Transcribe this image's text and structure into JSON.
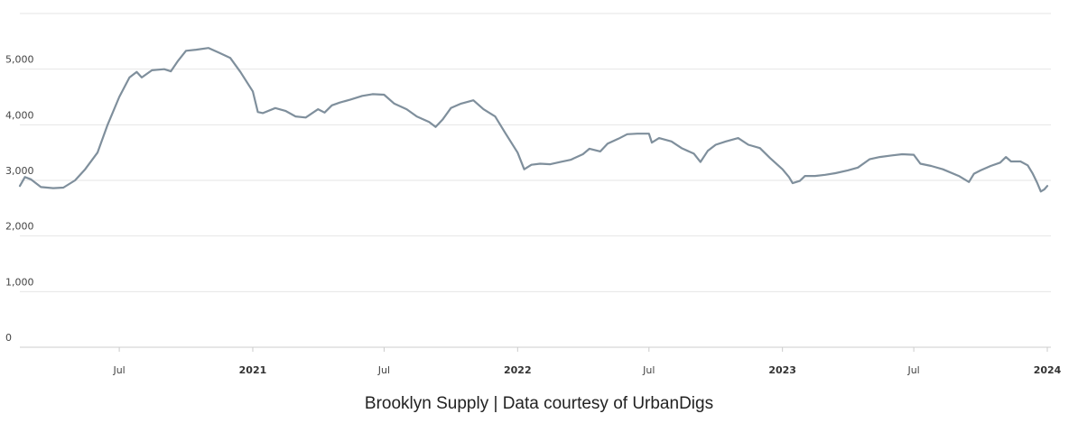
{
  "caption": "Brooklyn Supply | Data courtesy of UrbanDigs",
  "colors": {
    "line": "#7f8f9c",
    "grid": "#e6e6e6",
    "axis": "#cccccc"
  },
  "chart_data": {
    "type": "line",
    "title": "",
    "xlabel": "",
    "ylabel": "",
    "xlim": [
      "2020-02-15",
      "2024-01-01"
    ],
    "ylim": [
      0,
      6000
    ],
    "grid": true,
    "y_ticks": [
      {
        "value": 0,
        "label": "0"
      },
      {
        "value": 1000,
        "label": "1,000"
      },
      {
        "value": 2000,
        "label": "2,000"
      },
      {
        "value": 3000,
        "label": "3,000"
      },
      {
        "value": 4000,
        "label": "4,000"
      },
      {
        "value": 5000,
        "label": "5,000"
      }
    ],
    "x_ticks": [
      {
        "date": "2020-07-01",
        "label": "Jul",
        "major": false
      },
      {
        "date": "2021-01-01",
        "label": "2021",
        "major": true
      },
      {
        "date": "2021-07-01",
        "label": "Jul",
        "major": false
      },
      {
        "date": "2022-01-01",
        "label": "2022",
        "major": true
      },
      {
        "date": "2022-07-01",
        "label": "Jul",
        "major": false
      },
      {
        "date": "2023-01-01",
        "label": "2023",
        "major": true
      },
      {
        "date": "2023-07-01",
        "label": "Jul",
        "major": false
      },
      {
        "date": "2024-01-01",
        "label": "2024",
        "major": true
      }
    ],
    "series": [
      {
        "color": "#7f8f9c",
        "points": [
          [
            "2020-02-15",
            2900
          ],
          [
            "2020-02-22",
            3060
          ],
          [
            "2020-03-01",
            3020
          ],
          [
            "2020-03-15",
            2880
          ],
          [
            "2020-04-01",
            2860
          ],
          [
            "2020-04-15",
            2870
          ],
          [
            "2020-05-01",
            3000
          ],
          [
            "2020-05-15",
            3200
          ],
          [
            "2020-06-01",
            3500
          ],
          [
            "2020-06-15",
            4000
          ],
          [
            "2020-07-01",
            4500
          ],
          [
            "2020-07-15",
            4850
          ],
          [
            "2020-07-25",
            4950
          ],
          [
            "2020-08-01",
            4850
          ],
          [
            "2020-08-15",
            4980
          ],
          [
            "2020-09-01",
            5000
          ],
          [
            "2020-09-10",
            4960
          ],
          [
            "2020-09-20",
            5150
          ],
          [
            "2020-10-01",
            5330
          ],
          [
            "2020-10-15",
            5350
          ],
          [
            "2020-11-01",
            5380
          ],
          [
            "2020-11-15",
            5300
          ],
          [
            "2020-12-01",
            5200
          ],
          [
            "2020-12-15",
            4950
          ],
          [
            "2021-01-01",
            4600
          ],
          [
            "2021-01-08",
            4230
          ],
          [
            "2021-01-15",
            4210
          ],
          [
            "2021-02-01",
            4300
          ],
          [
            "2021-02-15",
            4250
          ],
          [
            "2021-03-01",
            4150
          ],
          [
            "2021-03-15",
            4130
          ],
          [
            "2021-04-01",
            4280
          ],
          [
            "2021-04-10",
            4220
          ],
          [
            "2021-04-20",
            4350
          ],
          [
            "2021-05-01",
            4400
          ],
          [
            "2021-05-15",
            4450
          ],
          [
            "2021-06-01",
            4520
          ],
          [
            "2021-06-15",
            4550
          ],
          [
            "2021-07-01",
            4540
          ],
          [
            "2021-07-15",
            4380
          ],
          [
            "2021-08-01",
            4280
          ],
          [
            "2021-08-15",
            4150
          ],
          [
            "2021-09-01",
            4050
          ],
          [
            "2021-09-10",
            3960
          ],
          [
            "2021-09-20",
            4100
          ],
          [
            "2021-10-01",
            4300
          ],
          [
            "2021-10-15",
            4380
          ],
          [
            "2021-11-01",
            4440
          ],
          [
            "2021-11-15",
            4280
          ],
          [
            "2021-12-01",
            4150
          ],
          [
            "2021-12-15",
            3850
          ],
          [
            "2022-01-01",
            3500
          ],
          [
            "2022-01-10",
            3200
          ],
          [
            "2022-01-20",
            3280
          ],
          [
            "2022-02-01",
            3300
          ],
          [
            "2022-02-15",
            3290
          ],
          [
            "2022-03-01",
            3330
          ],
          [
            "2022-03-15",
            3370
          ],
          [
            "2022-04-01",
            3470
          ],
          [
            "2022-04-10",
            3570
          ],
          [
            "2022-04-25",
            3520
          ],
          [
            "2022-05-05",
            3660
          ],
          [
            "2022-05-20",
            3750
          ],
          [
            "2022-06-01",
            3830
          ],
          [
            "2022-06-15",
            3840
          ],
          [
            "2022-07-01",
            3840
          ],
          [
            "2022-07-05",
            3680
          ],
          [
            "2022-07-15",
            3760
          ],
          [
            "2022-08-01",
            3700
          ],
          [
            "2022-08-15",
            3580
          ],
          [
            "2022-09-01",
            3480
          ],
          [
            "2022-09-10",
            3330
          ],
          [
            "2022-09-20",
            3530
          ],
          [
            "2022-10-01",
            3640
          ],
          [
            "2022-10-15",
            3700
          ],
          [
            "2022-11-01",
            3760
          ],
          [
            "2022-11-15",
            3640
          ],
          [
            "2022-12-01",
            3580
          ],
          [
            "2022-12-15",
            3400
          ],
          [
            "2023-01-01",
            3200
          ],
          [
            "2023-01-10",
            3060
          ],
          [
            "2023-01-15",
            2950
          ],
          [
            "2023-01-25",
            2990
          ],
          [
            "2023-02-01",
            3080
          ],
          [
            "2023-02-15",
            3080
          ],
          [
            "2023-03-01",
            3100
          ],
          [
            "2023-03-15",
            3130
          ],
          [
            "2023-04-01",
            3180
          ],
          [
            "2023-04-15",
            3230
          ],
          [
            "2023-05-01",
            3380
          ],
          [
            "2023-05-15",
            3420
          ],
          [
            "2023-06-01",
            3450
          ],
          [
            "2023-06-15",
            3470
          ],
          [
            "2023-07-01",
            3460
          ],
          [
            "2023-07-10",
            3300
          ],
          [
            "2023-07-25",
            3260
          ],
          [
            "2023-08-10",
            3200
          ],
          [
            "2023-09-01",
            3080
          ],
          [
            "2023-09-15",
            2970
          ],
          [
            "2023-09-22",
            3120
          ],
          [
            "2023-10-01",
            3180
          ],
          [
            "2023-10-15",
            3260
          ],
          [
            "2023-10-28",
            3320
          ],
          [
            "2023-11-05",
            3420
          ],
          [
            "2023-11-12",
            3340
          ],
          [
            "2023-11-25",
            3340
          ],
          [
            "2023-12-05",
            3270
          ],
          [
            "2023-12-12",
            3120
          ],
          [
            "2023-12-18",
            2960
          ],
          [
            "2023-12-23",
            2800
          ],
          [
            "2023-12-28",
            2840
          ],
          [
            "2024-01-01",
            2900
          ]
        ]
      }
    ]
  }
}
